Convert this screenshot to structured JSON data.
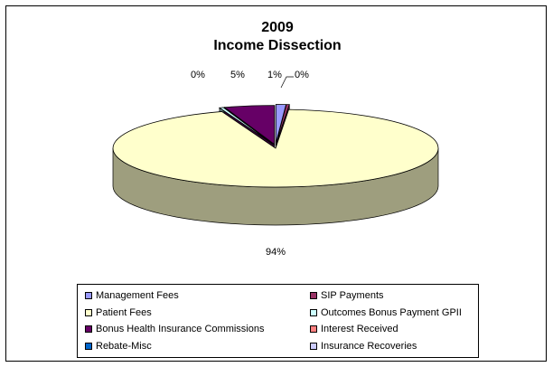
{
  "chart_data": {
    "type": "pie",
    "title_line1": "2009",
    "title_line2": "Income Dissection",
    "slices": [
      {
        "name": "Management Fees",
        "value": 1,
        "label": "1%",
        "color": "#9999ff"
      },
      {
        "name": "SIP Payments",
        "value": 0.3,
        "label": "0%",
        "color": "#993366"
      },
      {
        "name": "Patient Fees",
        "value": 94,
        "label": "94%",
        "color": "#ffffcc"
      },
      {
        "name": "Outcomes Bonus Payment GPII",
        "value": 0.4,
        "label": "0%",
        "color": "#ccffff"
      },
      {
        "name": "Bonus Health Insurance Commissions",
        "value": 5,
        "label": "5%",
        "color": "#660066"
      },
      {
        "name": "Interest Received",
        "value": 0,
        "label": "",
        "color": "#ff8080"
      },
      {
        "name": "Rebate-Misc",
        "value": 0,
        "label": "",
        "color": "#0066cc"
      },
      {
        "name": "Insurance Recoveries",
        "value": 0,
        "label": "",
        "color": "#ccccff"
      }
    ],
    "legend_position": "bottom"
  }
}
